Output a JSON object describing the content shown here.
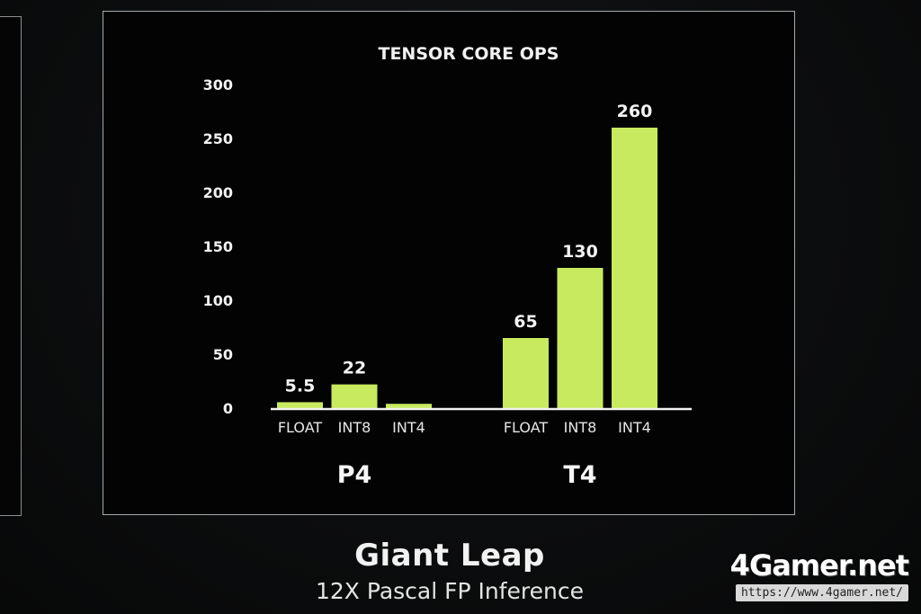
{
  "chart_data": {
    "type": "bar",
    "title": "TENSOR CORE OPS",
    "ylim": [
      0,
      300
    ],
    "yticks": [
      0,
      50,
      100,
      150,
      200,
      250,
      300
    ],
    "grid": false,
    "bar_color": "#c8ea5e",
    "groups": [
      {
        "name": "P4",
        "bars": [
          {
            "category": "FLOAT",
            "value": 5.5,
            "label": "5.5"
          },
          {
            "category": "INT8",
            "value": 22,
            "label": "22"
          },
          {
            "category": "INT4",
            "value": 4,
            "label": ""
          }
        ]
      },
      {
        "name": "T4",
        "bars": [
          {
            "category": "FLOAT",
            "value": 65,
            "label": "65"
          },
          {
            "category": "INT8",
            "value": 130,
            "label": "130"
          },
          {
            "category": "INT4",
            "value": 260,
            "label": "260"
          }
        ]
      }
    ]
  },
  "caption": {
    "title": "Giant Leap",
    "subtitle": "12X Pascal FP Inference"
  },
  "watermark": {
    "logo": "4Gamer.net",
    "url": "https://www.4gamer.net/"
  }
}
